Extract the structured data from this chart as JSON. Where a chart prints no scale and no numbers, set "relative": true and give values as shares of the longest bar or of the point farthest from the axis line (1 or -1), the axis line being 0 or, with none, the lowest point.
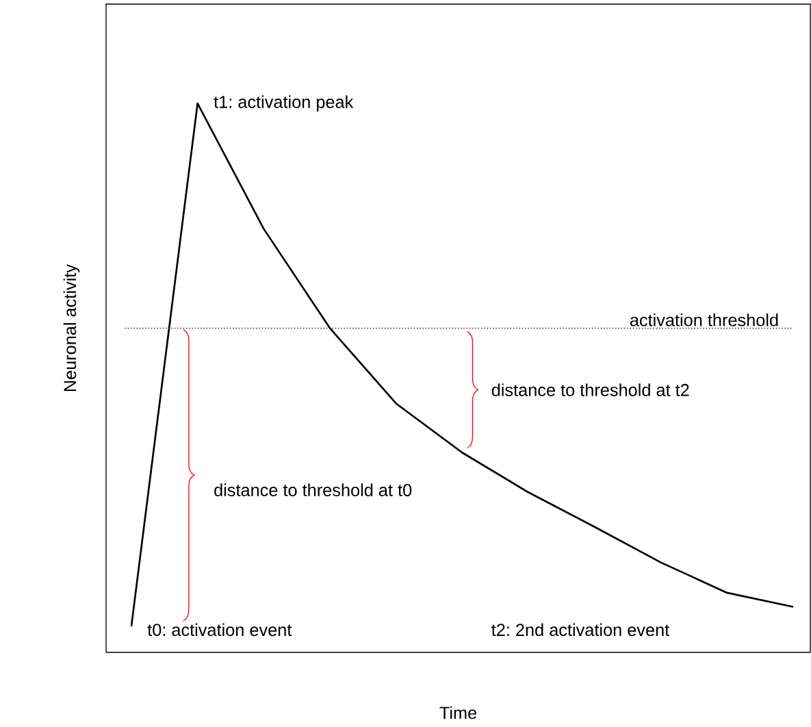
{
  "chart_data": {
    "type": "line",
    "relative": true,
    "xlabel": "Time",
    "ylabel": "Neuronal activity",
    "categories": [
      null,
      null,
      null,
      null,
      null,
      null,
      null,
      null,
      null,
      null,
      null
    ],
    "series": [
      {
        "color": "#000000",
        "values": [
          0,
          1,
          0.76,
          0.57,
          0.426,
          0.332,
          0.256,
          0.19,
          0.122,
          0.064,
          0.037
        ]
      }
    ],
    "ref_lines": [
      {
        "axis": "y",
        "value": 0.57,
        "label": "activation threshold",
        "color": "#333333",
        "line_style": "dotted"
      }
    ],
    "annotations": [
      "t1: activation peak",
      "t0: activation event",
      "t2: 2nd activation event",
      "distance to threshold at t0",
      "distance to threshold at t2"
    ]
  }
}
